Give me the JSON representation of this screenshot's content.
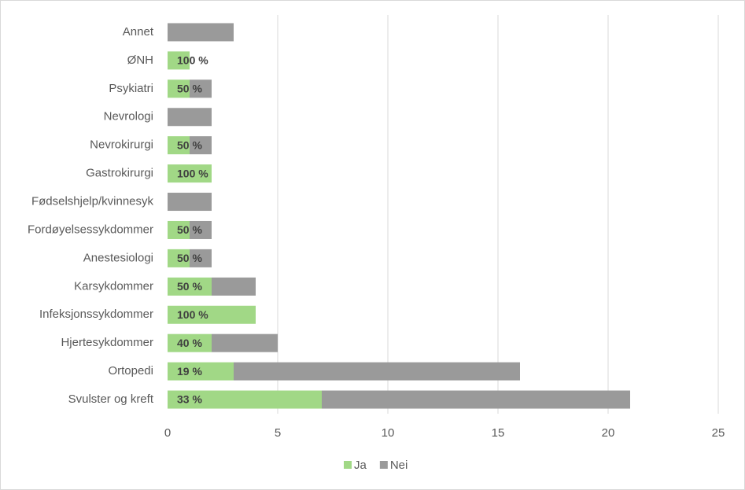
{
  "chart_data": {
    "type": "stacked_barh",
    "categories": [
      "Annet",
      "ØNH",
      "Psykiatri",
      "Nevrologi",
      "Nevrokirurgi",
      "Gastrokirurgi",
      "Fødselshjelp/kvinnesyk",
      "Fordøyelsessykdommer",
      "Anestesiologi",
      "Karsykdommer",
      "Infeksjonssykdommer",
      "Hjertesykdommer",
      "Ortopedi",
      "Svulster og kreft"
    ],
    "series": [
      {
        "name": "Ja",
        "color": "#a1d886",
        "values": [
          0,
          1,
          1,
          0,
          1,
          2,
          0,
          1,
          1,
          2,
          4,
          2,
          3,
          7
        ],
        "percent_labels": [
          null,
          "100 %",
          "50 %",
          null,
          "50 %",
          "100 %",
          null,
          "50 %",
          "50 %",
          "50 %",
          "100 %",
          "40 %",
          "19 %",
          "33 %"
        ]
      },
      {
        "name": "Nei",
        "color": "#9a9a9a",
        "values": [
          3,
          0,
          1,
          2,
          1,
          0,
          2,
          1,
          1,
          2,
          0,
          3,
          13,
          14
        ]
      }
    ],
    "xlim": [
      0,
      25
    ],
    "xticks": [
      0,
      5,
      10,
      15,
      20,
      25
    ],
    "grid": true,
    "legend": "bottom"
  }
}
